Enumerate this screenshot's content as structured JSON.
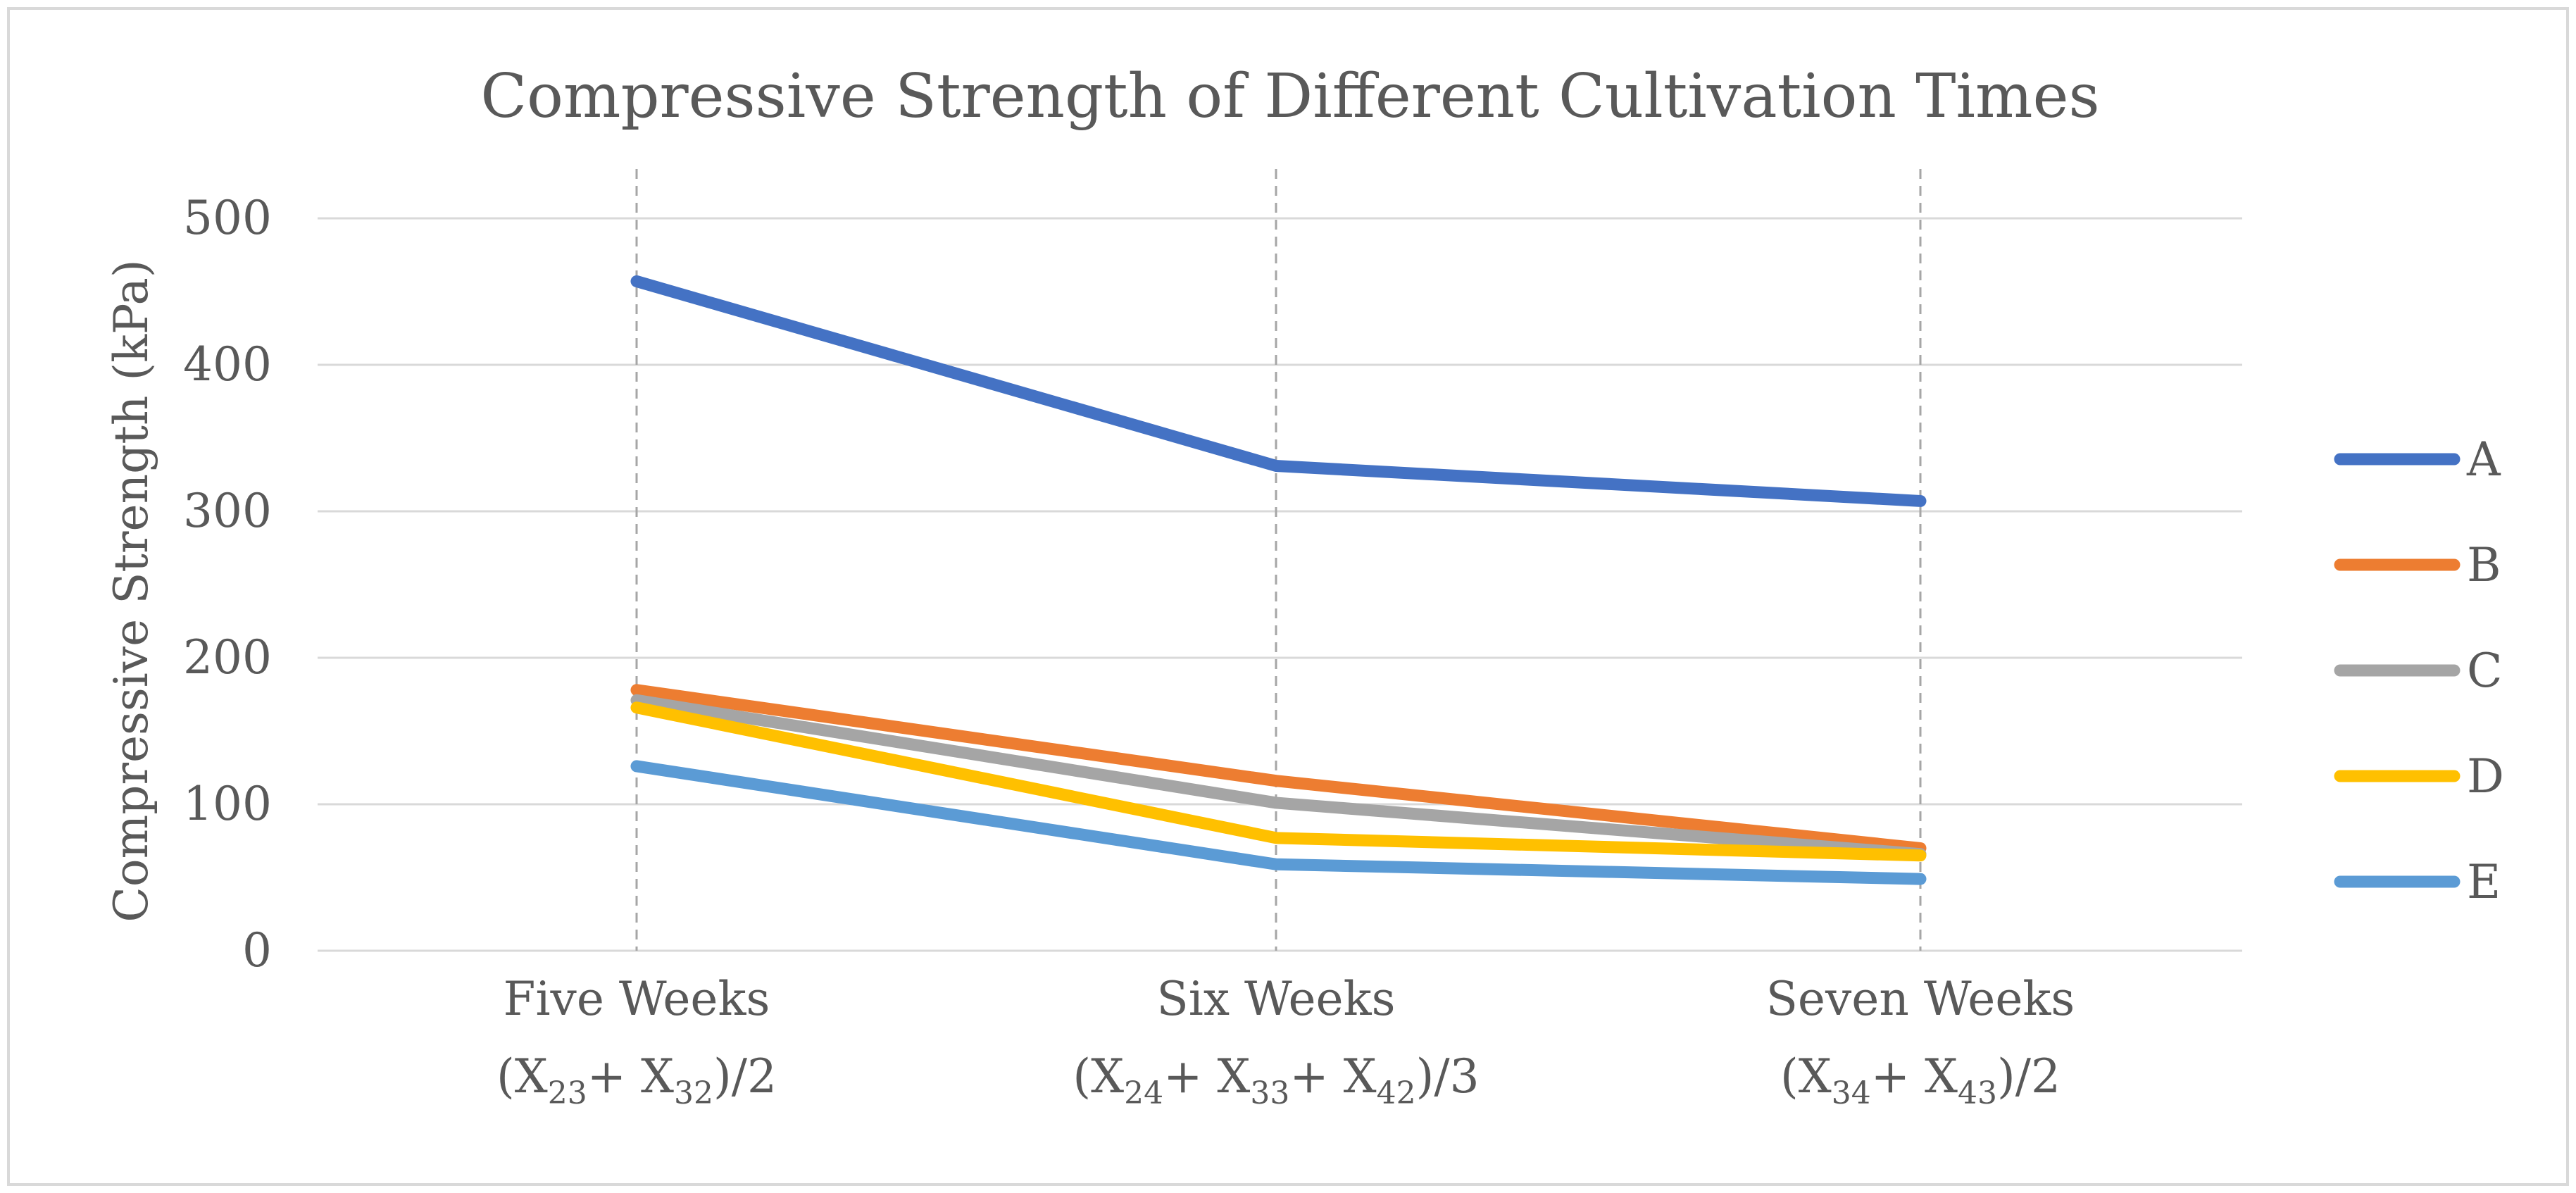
{
  "chart_data": {
    "type": "line",
    "title": "Compressive Strength of Different Cultivation Times",
    "xlabel": "",
    "ylabel": "Compressive Strength (kPa)",
    "ylim": [
      0,
      500
    ],
    "yticks": [
      0,
      100,
      200,
      300,
      400,
      500
    ],
    "categories": [
      {
        "label": "Five Weeks",
        "formula": [
          {
            "t": "(X"
          },
          {
            "t": "23",
            "sub": true
          },
          {
            "t": "+ X"
          },
          {
            "t": "32",
            "sub": true
          },
          {
            "t": ")/2"
          }
        ],
        "formula_text": "(X23+ X32)/2"
      },
      {
        "label": "Six Weeks",
        "formula": [
          {
            "t": "(X"
          },
          {
            "t": "24",
            "sub": true
          },
          {
            "t": "+ X"
          },
          {
            "t": "33",
            "sub": true
          },
          {
            "t": "+ X"
          },
          {
            "t": "42",
            "sub": true
          },
          {
            "t": ")/3"
          }
        ],
        "formula_text": "(X24+ X33+ X42)/3"
      },
      {
        "label": "Seven Weeks",
        "formula": [
          {
            "t": "(X"
          },
          {
            "t": "34",
            "sub": true
          },
          {
            "t": "+ X"
          },
          {
            "t": "43",
            "sub": true
          },
          {
            "t": ")/2"
          }
        ],
        "formula_text": "(X34+ X43)/2"
      }
    ],
    "series": [
      {
        "name": "A",
        "color": "#4472c4",
        "values": [
          457,
          331,
          307
        ]
      },
      {
        "name": "B",
        "color": "#ed7d31",
        "values": [
          178,
          116,
          70
        ]
      },
      {
        "name": "C",
        "color": "#a5a5a5",
        "values": [
          171,
          101,
          66
        ]
      },
      {
        "name": "D",
        "color": "#ffc000",
        "values": [
          166,
          77,
          65
        ]
      },
      {
        "name": "E",
        "color": "#5b9bd5",
        "values": [
          126,
          59,
          49
        ]
      }
    ],
    "grid": true,
    "legend": "right"
  }
}
